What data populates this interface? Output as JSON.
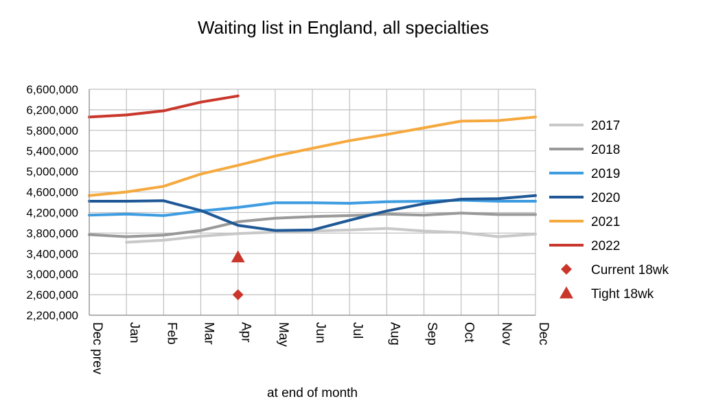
{
  "chart_data": {
    "type": "line",
    "title": "Waiting list in England, all specialties",
    "xlabel": "at end of month",
    "ylabel": "",
    "categories": [
      "Dec prev",
      "Jan",
      "Feb",
      "Mar",
      "Apr",
      "May",
      "Jun",
      "Jul",
      "Aug",
      "Sep",
      "Oct",
      "Nov",
      "Dec"
    ],
    "ylim": [
      2200000,
      6600000
    ],
    "yticks": [
      2200000,
      2600000,
      3000000,
      3400000,
      3800000,
      4200000,
      4600000,
      5000000,
      5400000,
      5800000,
      6200000,
      6600000
    ],
    "ytick_labels": [
      "2,200,000",
      "2,600,000",
      "3,000,000",
      "3,400,000",
      "3,800,000",
      "4,200,000",
      "4,600,000",
      "5,000,000",
      "5,400,000",
      "5,800,000",
      "6,200,000",
      "6,600,000"
    ],
    "grid": true,
    "legend_position": "right",
    "series": [
      {
        "name": "2017",
        "color": "#c8c8c8",
        "values": [
          null,
          3620000,
          3660000,
          3740000,
          3790000,
          3820000,
          3840000,
          3860000,
          3890000,
          3840000,
          3810000,
          3730000,
          3780000
        ]
      },
      {
        "name": "2018",
        "color": "#999999",
        "values": [
          3770000,
          3730000,
          3760000,
          3850000,
          4020000,
          4090000,
          4120000,
          4140000,
          4170000,
          4150000,
          4190000,
          4160000,
          4160000
        ]
      },
      {
        "name": "2019",
        "color": "#3e9ce0",
        "values": [
          4150000,
          4170000,
          4140000,
          4230000,
          4300000,
          4390000,
          4390000,
          4380000,
          4410000,
          4420000,
          4440000,
          4420000,
          4420000
        ]
      },
      {
        "name": "2020",
        "color": "#1f5896",
        "values": [
          4420000,
          4420000,
          4430000,
          4240000,
          3950000,
          3850000,
          3860000,
          4050000,
          4230000,
          4370000,
          4460000,
          4470000,
          4530000
        ]
      },
      {
        "name": "2021",
        "color": "#f5a93e",
        "values": [
          4530000,
          4600000,
          4710000,
          4950000,
          5120000,
          5300000,
          5450000,
          5600000,
          5720000,
          5850000,
          5980000,
          5990000,
          6060000
        ]
      },
      {
        "name": "2022",
        "color": "#c9372c",
        "values": [
          6060000,
          6100000,
          6180000,
          6350000,
          6470000,
          null,
          null,
          null,
          null,
          null,
          null,
          null,
          null
        ]
      }
    ],
    "markers": [
      {
        "name": "Current 18wk",
        "shape": "diamond",
        "color": "#c9372c",
        "category": "Apr",
        "value": 2600000
      },
      {
        "name": "Tight 18wk",
        "shape": "triangle",
        "color": "#c9372c",
        "category": "Apr",
        "value": 3330000
      }
    ]
  }
}
